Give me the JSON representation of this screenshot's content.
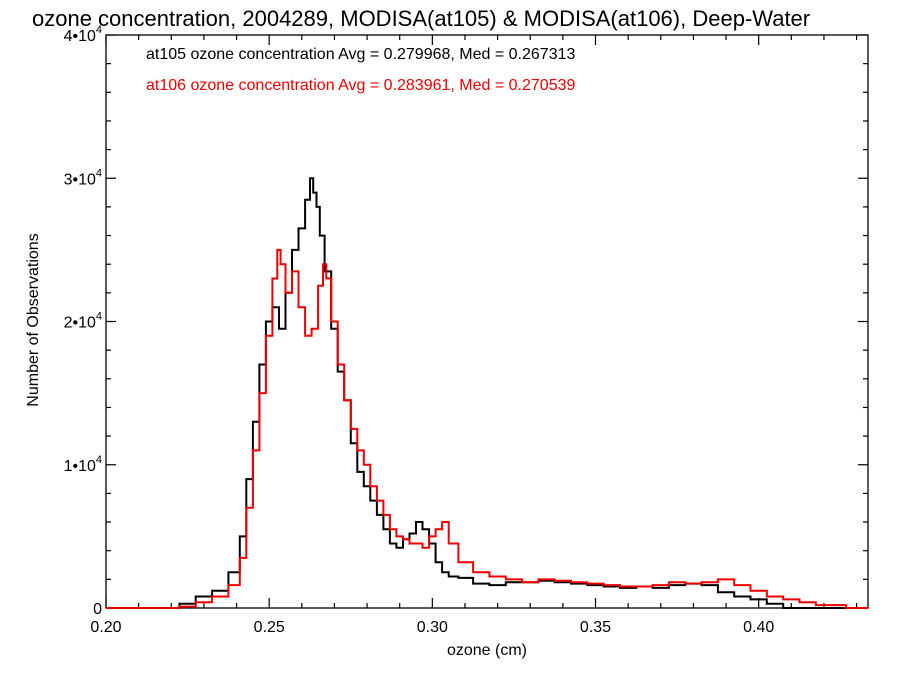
{
  "chart_data": {
    "type": "line",
    "title": "ozone concentration, 2004289, MODISA(at105) & MODISA(at106), Deep-Water",
    "xlabel": "ozone (cm)",
    "ylabel": "Number of Observations",
    "xlim": [
      0.2,
      0.4335
    ],
    "ylim": [
      0,
      40000
    ],
    "x_ticks": [
      "0.20",
      "0.25",
      "0.30",
      "0.35",
      "0.40"
    ],
    "y_ticks": [
      {
        "base": "0",
        "exp": ""
      },
      {
        "base": "1•10",
        "exp": "4"
      },
      {
        "base": "2•10",
        "exp": "4"
      },
      {
        "base": "3•10",
        "exp": "4"
      },
      {
        "base": "4•10",
        "exp": "4"
      }
    ],
    "legend": [
      {
        "text": "at105 ozone concentration Avg = 0.279968, Med = 0.267313",
        "color": "#000000"
      },
      {
        "text": "at106 ozone concentration Avg = 0.283961, Med = 0.270539",
        "color": "#ee0000"
      }
    ],
    "series": [
      {
        "color": "#000000",
        "x": [
          0.2,
          0.22,
          0.225,
          0.23,
          0.235,
          0.24,
          0.242,
          0.244,
          0.246,
          0.248,
          0.25,
          0.252,
          0.254,
          0.256,
          0.258,
          0.26,
          0.262,
          0.263,
          0.264,
          0.265,
          0.266,
          0.268,
          0.27,
          0.272,
          0.274,
          0.276,
          0.278,
          0.28,
          0.282,
          0.284,
          0.286,
          0.288,
          0.29,
          0.292,
          0.294,
          0.296,
          0.298,
          0.3,
          0.302,
          0.304,
          0.306,
          0.31,
          0.315,
          0.32,
          0.325,
          0.33,
          0.335,
          0.34,
          0.345,
          0.35,
          0.355,
          0.36,
          0.365,
          0.37,
          0.375,
          0.38,
          0.385,
          0.39,
          0.395,
          0.4,
          0.405,
          0.41,
          0.4335
        ],
        "y": [
          0,
          0,
          300,
          800,
          1200,
          2500,
          5000,
          9000,
          13000,
          17000,
          20000,
          21000,
          19500,
          22000,
          25000,
          26500,
          28500,
          30000,
          29000,
          28000,
          26000,
          23500,
          19500,
          16500,
          14500,
          11500,
          9500,
          8500,
          7500,
          6500,
          5500,
          4500,
          4200,
          4800,
          5200,
          6000,
          5500,
          4500,
          3200,
          2500,
          2200,
          2100,
          1700,
          1600,
          1800,
          1800,
          1900,
          1800,
          1700,
          1600,
          1500,
          1400,
          1500,
          1400,
          1600,
          1700,
          1600,
          1100,
          800,
          600,
          300,
          0,
          0
        ]
      },
      {
        "color": "#ee0000",
        "x": [
          0.2,
          0.22,
          0.225,
          0.23,
          0.235,
          0.24,
          0.242,
          0.244,
          0.246,
          0.248,
          0.25,
          0.252,
          0.253,
          0.254,
          0.256,
          0.258,
          0.26,
          0.262,
          0.264,
          0.266,
          0.267,
          0.268,
          0.27,
          0.272,
          0.274,
          0.276,
          0.278,
          0.28,
          0.282,
          0.284,
          0.286,
          0.288,
          0.29,
          0.292,
          0.294,
          0.296,
          0.298,
          0.3,
          0.302,
          0.304,
          0.306,
          0.31,
          0.315,
          0.32,
          0.325,
          0.33,
          0.335,
          0.34,
          0.345,
          0.35,
          0.355,
          0.36,
          0.365,
          0.37,
          0.375,
          0.38,
          0.385,
          0.39,
          0.395,
          0.4,
          0.405,
          0.41,
          0.415,
          0.42,
          0.4335
        ],
        "y": [
          0,
          0,
          100,
          400,
          800,
          1600,
          3500,
          7000,
          11000,
          15000,
          19000,
          23000,
          25000,
          24000,
          22000,
          23500,
          21000,
          19000,
          19500,
          22500,
          24000,
          23000,
          20000,
          17000,
          14500,
          12500,
          11000,
          10000,
          8500,
          7500,
          6500,
          5500,
          5000,
          4800,
          4500,
          4500,
          4200,
          5000,
          5500,
          6000,
          4500,
          3200,
          2500,
          2200,
          2000,
          1800,
          2000,
          1900,
          1800,
          1700,
          1600,
          1500,
          1500,
          1600,
          1800,
          1700,
          1800,
          2000,
          1600,
          1200,
          800,
          600,
          400,
          200,
          0
        ]
      }
    ]
  }
}
